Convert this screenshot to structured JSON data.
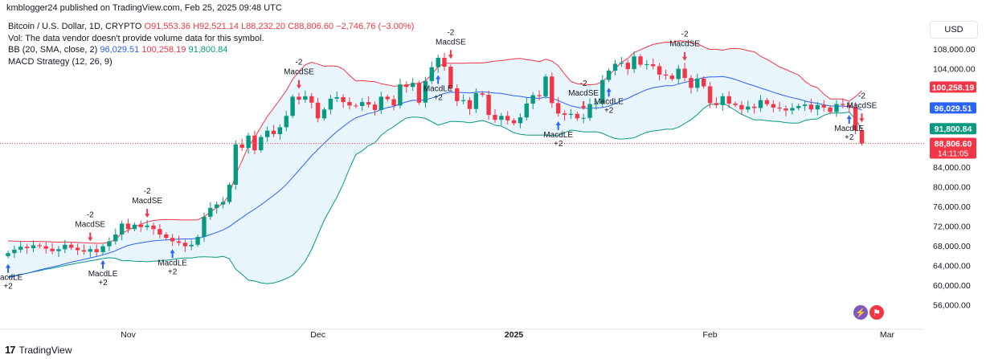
{
  "header": {
    "text": "kmblogger24 published on TradingView.com, Feb 25, 2025 09:48 UTC"
  },
  "legend": {
    "symbol": "Bitcoin / U.S. Dollar, 1D, CRYPTO",
    "open": "O91,553.36",
    "high": "H92,521.14",
    "low": "L88,232.20",
    "close": "C88,806.60",
    "change": "−2,746.76 (−3.00%)",
    "vol": "Vol: The data vendor doesn't provide volume data for this symbol.",
    "bb_label": "BB (20, SMA, close, 2)",
    "bb_basis": "96,029.51",
    "bb_upper": "100,258.19",
    "bb_lower": "91,800.84",
    "macd": "MACD Strategy (12, 26, 9)"
  },
  "currency": "USD",
  "footer": {
    "logo": "17",
    "name": "TradingView"
  },
  "colors": {
    "up": "#089981",
    "down": "#f23645",
    "basis": "#2962ff",
    "upper": "#f23645",
    "lower": "#089981",
    "fill": "#e3f2fd"
  },
  "chart_data": {
    "type": "candlestick",
    "title": "Bitcoin / U.S. Dollar, 1D, CRYPTO",
    "y_ticks": [
      "108,000.00",
      "104,000.00",
      "100,000.00",
      "96,000.00",
      "92,000.00",
      "88,000.00",
      "84,000.00",
      "80,000.00",
      "76,000.00",
      "72,000.00",
      "68,000.00",
      "64,000.00",
      "60,000.00",
      "56,000.00"
    ],
    "x_ticks": [
      {
        "label": "Nov",
        "index": 19
      },
      {
        "label": "Dec",
        "index": 49
      },
      {
        "label": "2025",
        "index": 80
      },
      {
        "label": "Feb",
        "index": 111
      },
      {
        "label": "Mar",
        "index": 139
      }
    ],
    "ylim": [
      53000,
      112000
    ],
    "price_badges": [
      {
        "label": "100,258.19",
        "value": 100258.19,
        "color": "#f23645"
      },
      {
        "label": "96,029.51",
        "value": 96029.51,
        "color": "#2962ff"
      },
      {
        "label": "91,800.84",
        "value": 91800.84,
        "color": "#089981"
      },
      {
        "label": "88,806.60",
        "value": 88806.6,
        "color": "#f23645",
        "sub": "14:11:05"
      }
    ],
    "close": [
      66500,
      67200,
      67800,
      67500,
      68100,
      67900,
      67400,
      66900,
      67300,
      68200,
      67600,
      67100,
      66800,
      67300,
      66700,
      67900,
      68900,
      70300,
      72500,
      71400,
      72300,
      71800,
      72100,
      71400,
      70300,
      69600,
      68900,
      68600,
      67900,
      68200,
      69800,
      73900,
      75700,
      76400,
      76900,
      80400,
      88600,
      87900,
      90400,
      87400,
      90100,
      91400,
      90700,
      92100,
      94400,
      98300,
      97700,
      98400,
      97100,
      93900,
      95700,
      97900,
      98200,
      97200,
      96500,
      96400,
      97200,
      96700,
      95600,
      98300,
      97800,
      96500,
      100800,
      100300,
      101100,
      97100,
      101500,
      104300,
      106200,
      104400,
      100000,
      97400,
      97600,
      95800,
      99000,
      98700,
      94600,
      93600,
      94400,
      93500,
      92900,
      94100,
      96900,
      98600,
      98400,
      102400,
      97000,
      94900,
      94600,
      94800,
      93900,
      94000,
      96800,
      96900,
      101700,
      103600,
      105000,
      105200,
      103900,
      106500,
      104800,
      104900,
      104500,
      102800,
      102600,
      101900,
      104000,
      102100,
      100100,
      102000,
      100400,
      97000,
      96600,
      98400,
      96900,
      96600,
      95700,
      96300,
      96000,
      97600,
      96800,
      96100,
      95900,
      95500,
      96000,
      96400,
      96700,
      95700,
      96600,
      96100,
      95200,
      96800,
      96600,
      96200,
      91500,
      88800
    ],
    "basis_start": 61500,
    "upper_start": 69000,
    "lower_start": 61700,
    "macd_signals": [
      {
        "index": 0,
        "type": "LE"
      },
      {
        "index": 13,
        "type": "SE"
      },
      {
        "index": 15,
        "type": "LE"
      },
      {
        "index": 22,
        "type": "SE"
      },
      {
        "index": 26,
        "type": "LE"
      },
      {
        "index": 46,
        "type": "SE"
      },
      {
        "index": 68,
        "type": "LE"
      },
      {
        "index": 70,
        "type": "SE"
      },
      {
        "index": 87,
        "type": "LE"
      },
      {
        "index": 91,
        "type": "SE"
      },
      {
        "index": 95,
        "type": "LE"
      },
      {
        "index": 107,
        "type": "SE"
      },
      {
        "index": 133,
        "type": "LE"
      },
      {
        "index": 135,
        "type": "SE"
      }
    ]
  }
}
